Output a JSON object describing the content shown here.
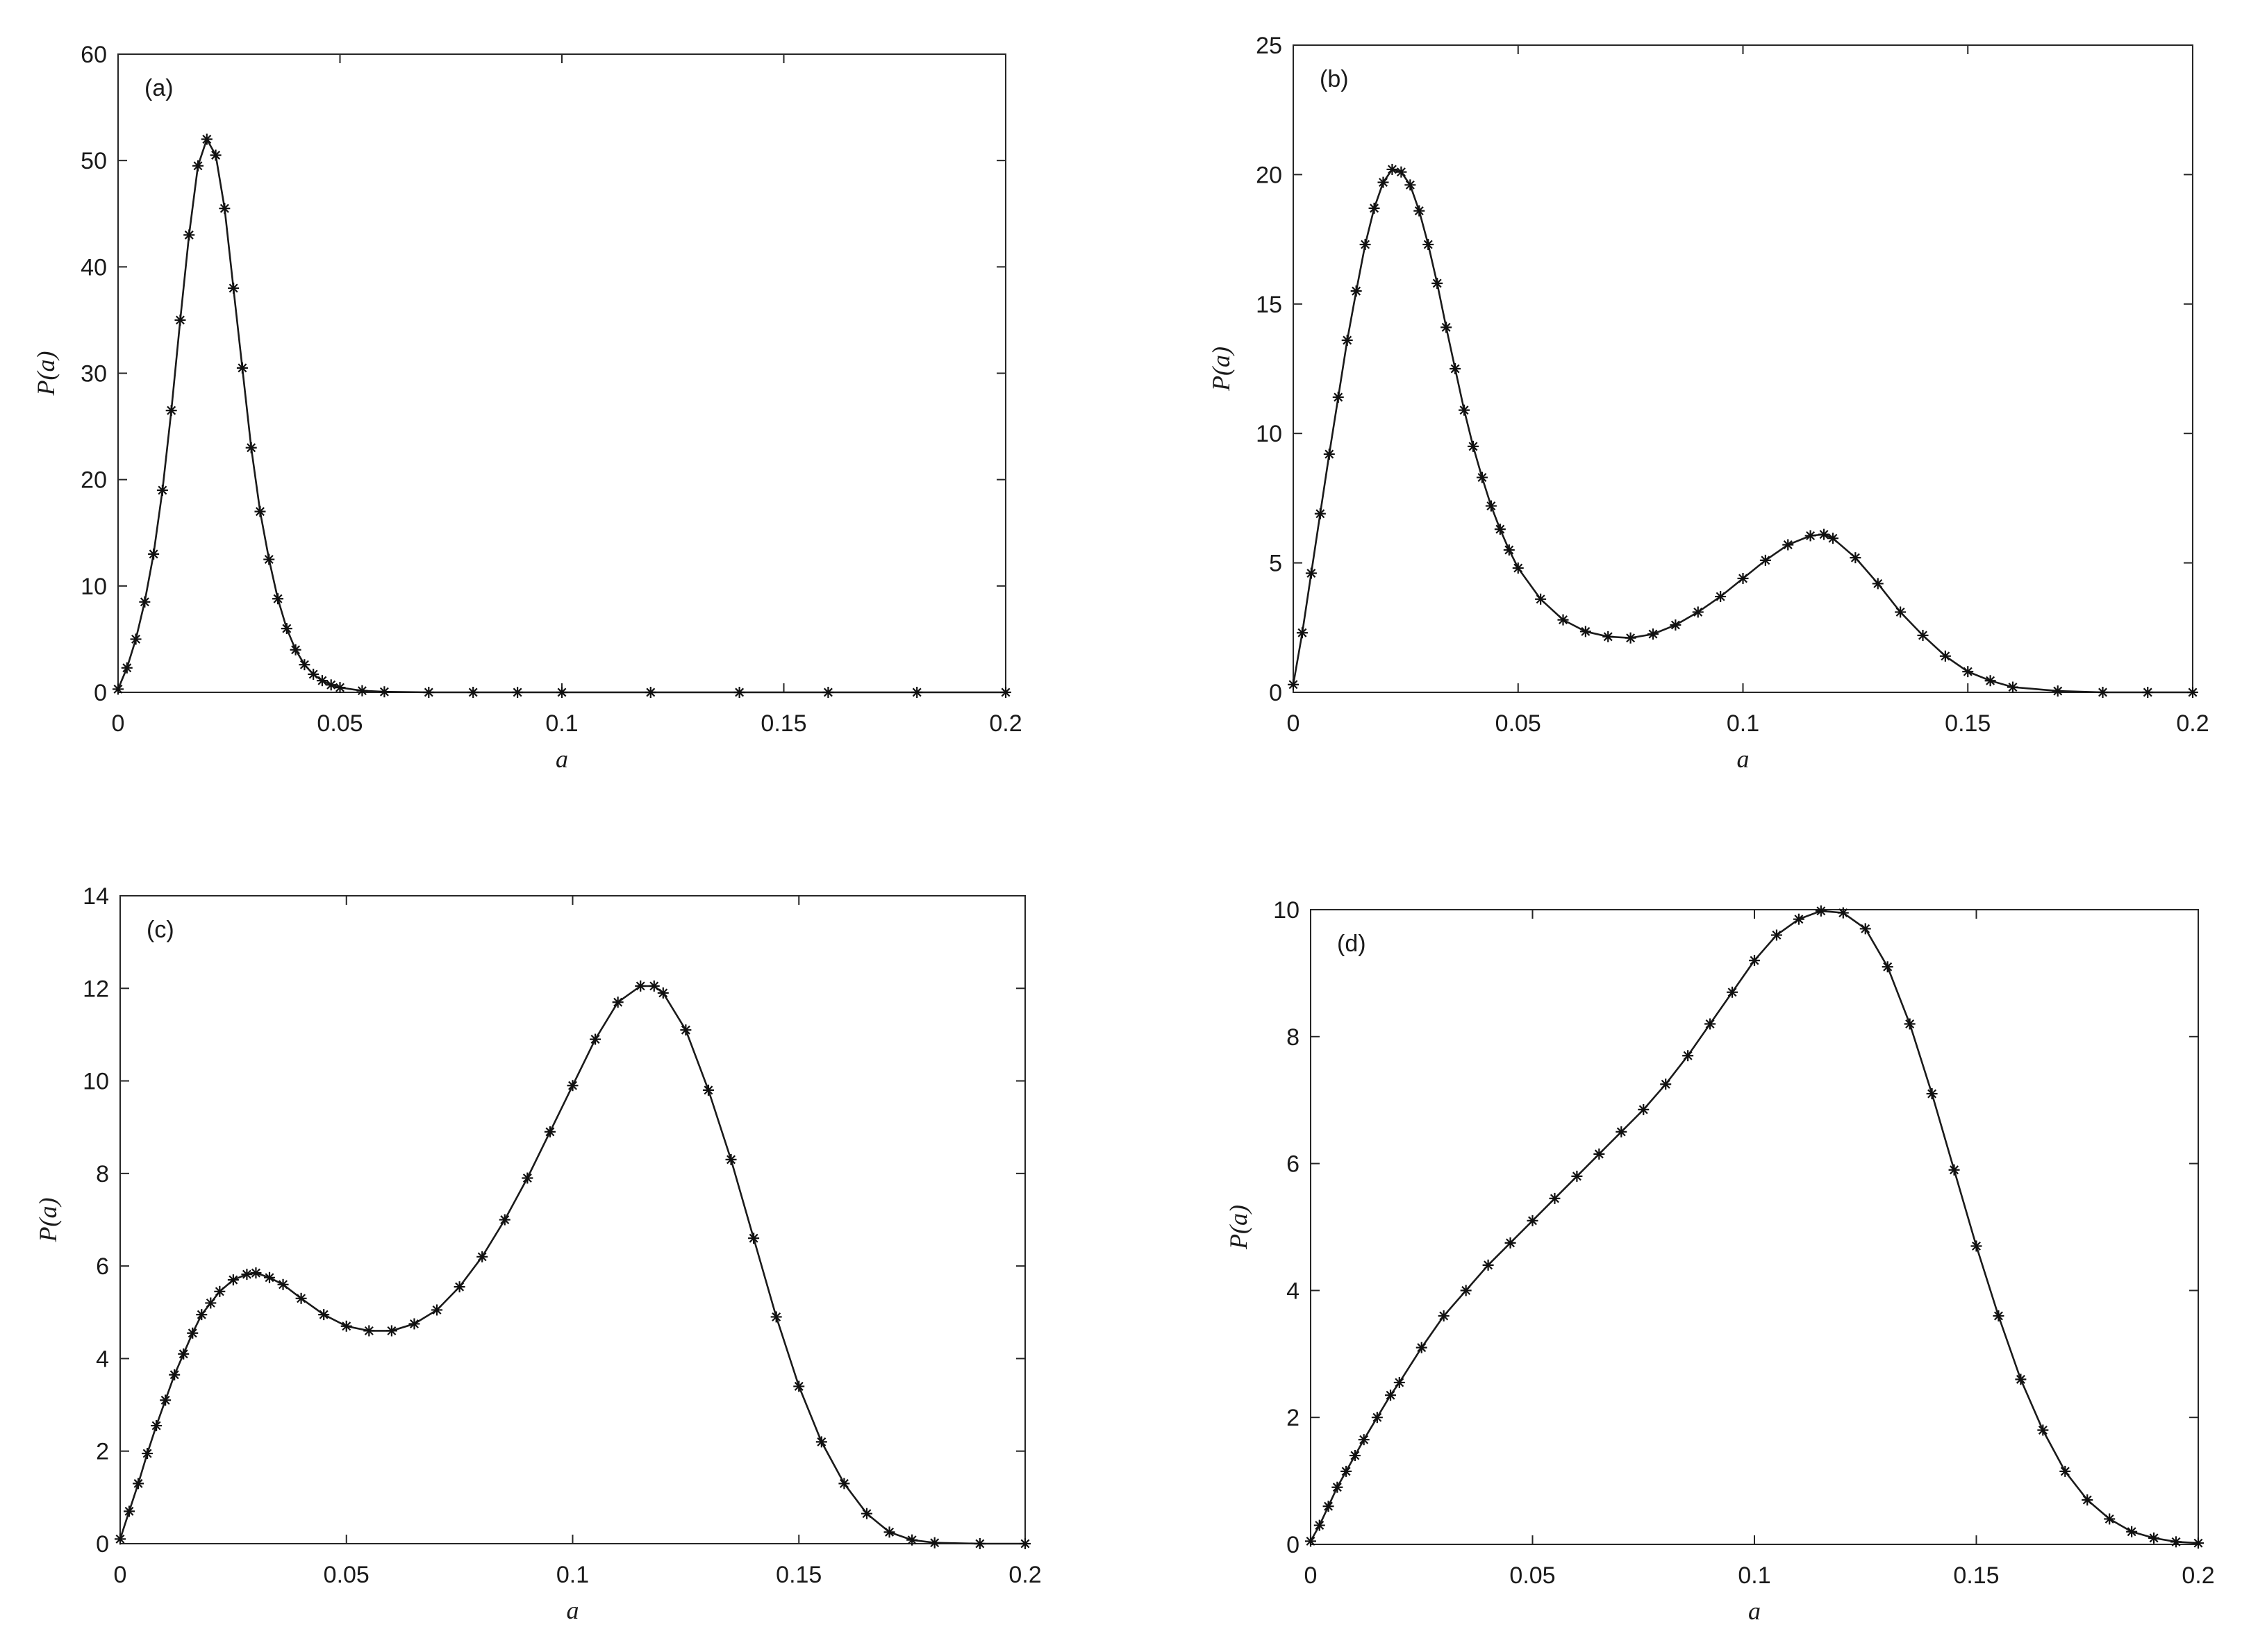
{
  "chart_data": [
    {
      "type": "line",
      "panel_label": "(a)",
      "xlabel": "a",
      "ylabel": "P(a)",
      "xlim": [
        0,
        0.2
      ],
      "ylim": [
        0,
        60
      ],
      "xticks": [
        0,
        0.05,
        0.1,
        0.15,
        0.2
      ],
      "xtick_labels": [
        "0",
        "0.05",
        "0.1",
        "0.15",
        "0.2"
      ],
      "yticks": [
        0,
        10,
        20,
        30,
        40,
        50,
        60
      ],
      "ytick_labels": [
        "0",
        "10",
        "20",
        "30",
        "40",
        "50",
        "60"
      ],
      "grid": false,
      "series": [
        {
          "marker": "asterisk",
          "x": [
            0,
            0.002,
            0.004,
            0.006,
            0.008,
            0.01,
            0.012,
            0.014,
            0.016,
            0.018,
            0.02,
            0.022,
            0.024,
            0.026,
            0.028,
            0.03,
            0.032,
            0.034,
            0.036,
            0.038,
            0.04,
            0.042,
            0.044,
            0.046,
            0.048,
            0.05,
            0.055,
            0.06,
            0.07,
            0.08,
            0.09,
            0.1,
            0.12,
            0.14,
            0.16,
            0.18,
            0.2
          ],
          "values": [
            0.3,
            2.3,
            5,
            8.5,
            13,
            19,
            26.5,
            35,
            43,
            49.5,
            52,
            50.5,
            45.5,
            38,
            30.5,
            23,
            17,
            12.5,
            8.8,
            6,
            4,
            2.6,
            1.7,
            1.1,
            0.7,
            0.45,
            0.15,
            0.05,
            0,
            0,
            0,
            0,
            0,
            0,
            0,
            0,
            0
          ]
        }
      ]
    },
    {
      "type": "line",
      "panel_label": "(b)",
      "xlabel": "a",
      "ylabel": "P(a)",
      "xlim": [
        0,
        0.2
      ],
      "ylim": [
        0,
        25
      ],
      "xticks": [
        0,
        0.05,
        0.1,
        0.15,
        0.2
      ],
      "xtick_labels": [
        "0",
        "0.05",
        "0.1",
        "0.15",
        "0.2"
      ],
      "yticks": [
        0,
        5,
        10,
        15,
        20,
        25
      ],
      "ytick_labels": [
        "0",
        "5",
        "10",
        "15",
        "20",
        "25"
      ],
      "grid": false,
      "series": [
        {
          "marker": "asterisk",
          "x": [
            0,
            0.002,
            0.004,
            0.006,
            0.008,
            0.01,
            0.012,
            0.014,
            0.016,
            0.018,
            0.02,
            0.022,
            0.024,
            0.026,
            0.028,
            0.03,
            0.032,
            0.034,
            0.036,
            0.038,
            0.04,
            0.042,
            0.044,
            0.046,
            0.048,
            0.05,
            0.055,
            0.06,
            0.065,
            0.07,
            0.075,
            0.08,
            0.085,
            0.09,
            0.095,
            0.1,
            0.105,
            0.11,
            0.115,
            0.118,
            0.12,
            0.125,
            0.13,
            0.135,
            0.14,
            0.145,
            0.15,
            0.155,
            0.16,
            0.17,
            0.18,
            0.19,
            0.2
          ],
          "values": [
            0.3,
            2.3,
            4.6,
            6.9,
            9.2,
            11.4,
            13.6,
            15.5,
            17.3,
            18.7,
            19.7,
            20.2,
            20.1,
            19.6,
            18.6,
            17.3,
            15.8,
            14.1,
            12.5,
            10.9,
            9.5,
            8.3,
            7.2,
            6.3,
            5.5,
            4.8,
            3.6,
            2.8,
            2.35,
            2.15,
            2.1,
            2.25,
            2.6,
            3.1,
            3.7,
            4.4,
            5.1,
            5.7,
            6.05,
            6.1,
            5.95,
            5.2,
            4.2,
            3.1,
            2.2,
            1.4,
            0.8,
            0.45,
            0.2,
            0.05,
            0,
            0,
            0
          ]
        }
      ]
    },
    {
      "type": "line",
      "panel_label": "(c)",
      "xlabel": "a",
      "ylabel": "P(a)",
      "xlim": [
        0,
        0.2
      ],
      "ylim": [
        0,
        14
      ],
      "xticks": [
        0,
        0.05,
        0.1,
        0.15,
        0.2
      ],
      "xtick_labels": [
        "0",
        "0.05",
        "0.1",
        "0.15",
        "0.2"
      ],
      "yticks": [
        0,
        2,
        4,
        6,
        8,
        10,
        12,
        14
      ],
      "ytick_labels": [
        "0",
        "2",
        "4",
        "6",
        "8",
        "10",
        "12",
        "14"
      ],
      "grid": false,
      "series": [
        {
          "marker": "asterisk",
          "x": [
            0,
            0.002,
            0.004,
            0.006,
            0.008,
            0.01,
            0.012,
            0.014,
            0.016,
            0.018,
            0.02,
            0.022,
            0.025,
            0.028,
            0.03,
            0.033,
            0.036,
            0.04,
            0.045,
            0.05,
            0.055,
            0.06,
            0.065,
            0.07,
            0.075,
            0.08,
            0.085,
            0.09,
            0.095,
            0.1,
            0.105,
            0.11,
            0.115,
            0.118,
            0.12,
            0.125,
            0.13,
            0.135,
            0.14,
            0.145,
            0.15,
            0.155,
            0.16,
            0.165,
            0.17,
            0.175,
            0.18,
            0.19,
            0.2
          ],
          "values": [
            0.1,
            0.7,
            1.3,
            1.95,
            2.55,
            3.1,
            3.65,
            4.1,
            4.55,
            4.95,
            5.2,
            5.45,
            5.7,
            5.82,
            5.85,
            5.75,
            5.6,
            5.3,
            4.95,
            4.7,
            4.6,
            4.6,
            4.75,
            5.05,
            5.55,
            6.2,
            7.0,
            7.9,
            8.9,
            9.9,
            10.9,
            11.7,
            12.05,
            12.05,
            11.9,
            11.1,
            9.8,
            8.3,
            6.6,
            4.9,
            3.4,
            2.2,
            1.3,
            0.65,
            0.25,
            0.08,
            0.02,
            0,
            0
          ]
        }
      ]
    },
    {
      "type": "line",
      "panel_label": "(d)",
      "xlabel": "a",
      "ylabel": "P(a)",
      "xlim": [
        0,
        0.2
      ],
      "ylim": [
        0,
        10
      ],
      "xticks": [
        0,
        0.05,
        0.1,
        0.15,
        0.2
      ],
      "xtick_labels": [
        "0",
        "0.05",
        "0.1",
        "0.15",
        "0.2"
      ],
      "yticks": [
        0,
        2,
        4,
        6,
        8,
        10
      ],
      "ytick_labels": [
        "0",
        "2",
        "4",
        "6",
        "8",
        "10"
      ],
      "grid": false,
      "series": [
        {
          "marker": "asterisk",
          "x": [
            0,
            0.002,
            0.004,
            0.006,
            0.008,
            0.01,
            0.012,
            0.015,
            0.018,
            0.02,
            0.025,
            0.03,
            0.035,
            0.04,
            0.045,
            0.05,
            0.055,
            0.06,
            0.065,
            0.07,
            0.075,
            0.08,
            0.085,
            0.09,
            0.095,
            0.1,
            0.105,
            0.11,
            0.115,
            0.12,
            0.125,
            0.13,
            0.135,
            0.14,
            0.145,
            0.15,
            0.155,
            0.16,
            0.165,
            0.17,
            0.175,
            0.18,
            0.185,
            0.19,
            0.195,
            0.2
          ],
          "values": [
            0.05,
            0.3,
            0.6,
            0.9,
            1.15,
            1.4,
            1.65,
            2.0,
            2.35,
            2.55,
            3.1,
            3.6,
            4.0,
            4.4,
            4.75,
            5.1,
            5.45,
            5.8,
            6.15,
            6.5,
            6.85,
            7.25,
            7.7,
            8.2,
            8.7,
            9.2,
            9.6,
            9.85,
            9.98,
            9.95,
            9.7,
            9.1,
            8.2,
            7.1,
            5.9,
            4.7,
            3.6,
            2.6,
            1.8,
            1.15,
            0.7,
            0.4,
            0.2,
            0.1,
            0.04,
            0.02
          ]
        }
      ]
    }
  ]
}
